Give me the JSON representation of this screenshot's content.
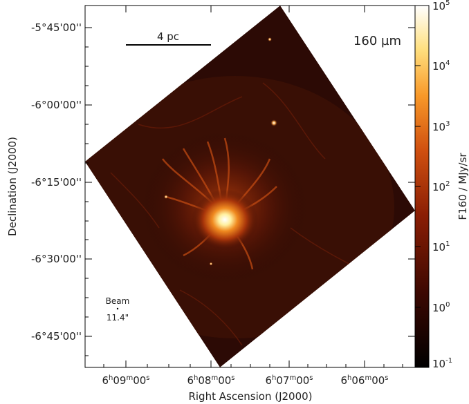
{
  "figure": {
    "band_label": "160 µm",
    "scalebar_label": "4 pc",
    "beam_label": "Beam",
    "beam_size": "11.4\"",
    "x_axis_label": "Right Ascension (J2000)",
    "y_axis_label": "Declination (J2000)",
    "x_ticks": [
      {
        "h": "6",
        "m": "09",
        "s": "00"
      },
      {
        "h": "6",
        "m": "08",
        "s": "00"
      },
      {
        "h": "6",
        "m": "07",
        "s": "00"
      },
      {
        "h": "6",
        "m": "06",
        "s": "00"
      }
    ],
    "y_ticks": [
      "-5°45'00''",
      "-6°00'00''",
      "-6°15'00''",
      "-6°30'00''",
      "-6°45'00''"
    ],
    "colorbar": {
      "label": "F160 / MJy/sr",
      "ticks": [
        {
          "base": "10",
          "exp": "5"
        },
        {
          "base": "10",
          "exp": "4"
        },
        {
          "base": "10",
          "exp": "3"
        },
        {
          "base": "10",
          "exp": "2"
        },
        {
          "base": "10",
          "exp": "1"
        },
        {
          "base": "10",
          "exp": "0"
        },
        {
          "base": "10",
          "exp": "-1"
        }
      ],
      "scale": "log",
      "colormap": [
        "#000000",
        "#4a0a02",
        "#a02a05",
        "#e06010",
        "#ffa030",
        "#ffe070",
        "#ffffff"
      ]
    }
  }
}
